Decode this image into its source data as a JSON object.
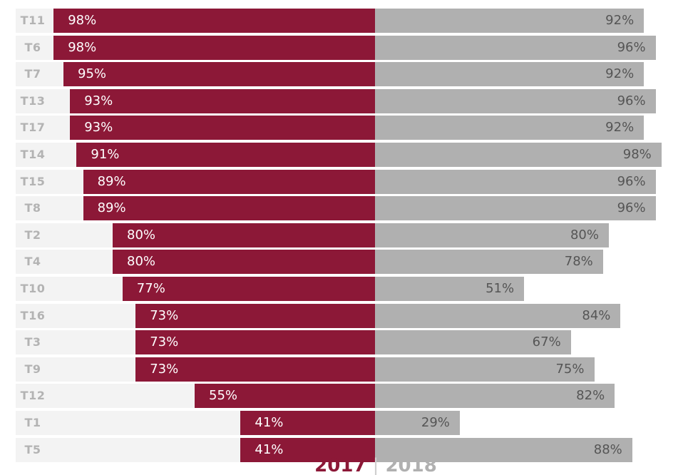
{
  "chart_data": {
    "type": "bar",
    "orientation": "horizontal-diverging",
    "categories": [
      "T11",
      "T6",
      "T7",
      "T13",
      "T17",
      "T14",
      "T15",
      "T8",
      "T2",
      "T4",
      "T10",
      "T16",
      "T3",
      "T9",
      "T12",
      "T1",
      "T5"
    ],
    "series": [
      {
        "name": "2017",
        "color": "#8c1837",
        "values": [
          98,
          98,
          95,
          93,
          93,
          91,
          89,
          89,
          80,
          80,
          77,
          73,
          73,
          73,
          55,
          41,
          41
        ],
        "labels": [
          "98%",
          "98%",
          "95%",
          "93%",
          "93%",
          "91%",
          "89%",
          "89%",
          "80%",
          "80%",
          "77%",
          "73%",
          "73%",
          "73%",
          "55%",
          "41%",
          "41%"
        ]
      },
      {
        "name": "2018",
        "color": "#b0b0b0",
        "values": [
          92,
          96,
          92,
          96,
          92,
          98,
          96,
          96,
          80,
          78,
          51,
          84,
          67,
          75,
          82,
          29,
          88
        ],
        "labels": [
          "92%",
          "96%",
          "92%",
          "96%",
          "92%",
          "98%",
          "96%",
          "96%",
          "80%",
          "78%",
          "51%",
          "84%",
          "67%",
          "75%",
          "82%",
          "29%",
          "88%"
        ]
      }
    ],
    "value_unit": "%",
    "xlim": [
      0,
      100
    ],
    "legend": {
      "position": "bottom-center",
      "separator": "|"
    },
    "grid": false
  }
}
